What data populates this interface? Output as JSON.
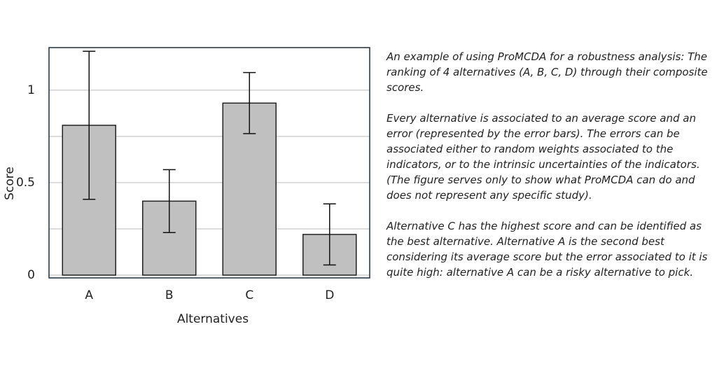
{
  "chart_data": {
    "type": "bar",
    "categories": [
      "A",
      "B",
      "C",
      "D"
    ],
    "values": [
      0.81,
      0.4,
      0.93,
      0.22
    ],
    "errors": [
      0.4,
      0.17,
      0.165,
      0.165
    ],
    "color": "#c0c0c0",
    "xlabel": "Alternatives",
    "ylabel": "Score",
    "ylim": [
      -0.015,
      1.23
    ],
    "yticks": [
      0,
      0.5,
      1
    ],
    "minor_yticks": [
      0.25,
      0.75
    ],
    "grid": true
  },
  "description": {
    "paragraphs": [
      "An example of using ProMCDA for a robustness analysis: The ranking of 4 alternatives (A, B, C, D) through their composite scores.",
      "Every alternative is associated to an average score and an error (represented by the error bars). The errors can be associated either to random weights associated to the indicators, or to the intrinsic uncertainties of the indicators. (The figure serves only to show what ProMCDA can do and does not represent any specific study).",
      "Alternative C has the highest score and can be identified as the best alternative. Alternative A is the second best considering its average score but the error associated to it is quite high: alternative A can be a risky alternative to pick."
    ]
  }
}
